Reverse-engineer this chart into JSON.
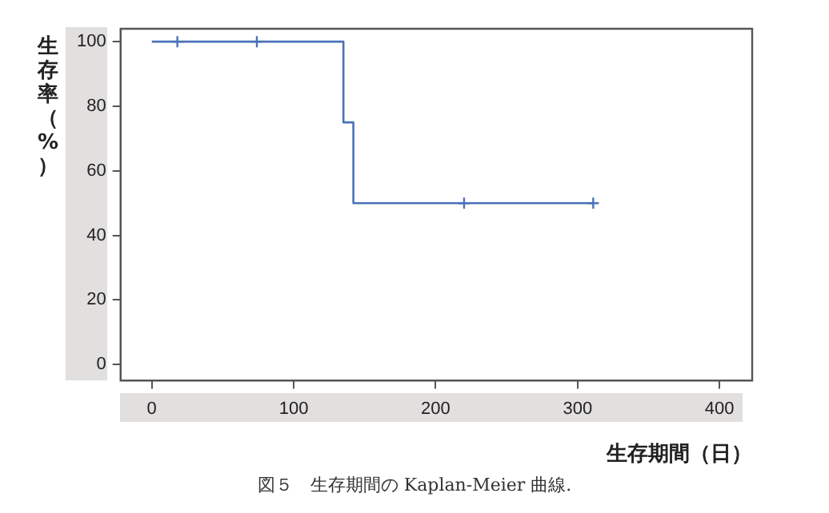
{
  "chart_data": {
    "type": "step",
    "xlabel": "生存期間（日）",
    "ylabel": "生存率（%）",
    "annotations": [
      "図５　生存期間の Kaplan-Meier 曲線."
    ],
    "xlim": [
      -22,
      423
    ],
    "xticks": [
      0,
      100,
      200,
      300,
      400
    ],
    "ylim": [
      -5,
      104
    ],
    "yticks": [
      0,
      20,
      40,
      60,
      80,
      100
    ],
    "grid": false,
    "legend": false,
    "line_style": "solid",
    "series": [
      {
        "type": "step",
        "color": "#4a72b8",
        "marker": "none",
        "x": [
          0,
          18,
          74,
          135,
          142,
          220,
          311
        ],
        "values": [
          100,
          100,
          100,
          75,
          50,
          50,
          50
        ]
      },
      {
        "type": "scatter",
        "color": "#4a72b8",
        "marker": "cross",
        "x": [
          18,
          74,
          220,
          311
        ],
        "values": [
          100,
          100,
          50,
          50
        ]
      }
    ]
  }
}
